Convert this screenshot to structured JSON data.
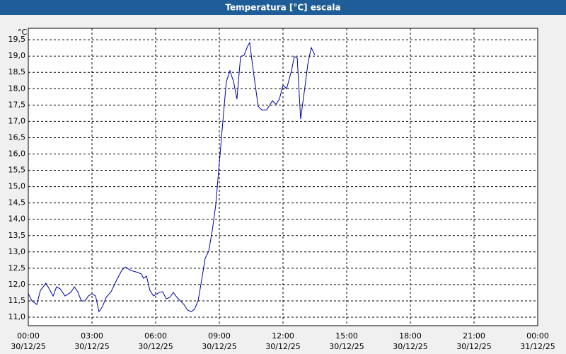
{
  "chart_data": {
    "type": "line",
    "title": "Temperatura [°C] escala",
    "y_unit": "°C",
    "x": [
      0,
      0.17,
      0.4,
      0.57,
      0.83,
      0.93,
      1.17,
      1.33,
      1.5,
      1.73,
      2,
      2.17,
      2.33,
      2.5,
      2.67,
      2.83,
      3,
      3.17,
      3.33,
      3.5,
      3.67,
      3.9,
      4.17,
      4.4,
      4.57,
      4.83,
      5.17,
      5.33,
      5.43,
      5.57,
      5.73,
      5.9,
      6.17,
      6.33,
      6.5,
      6.67,
      6.83,
      7,
      7.17,
      7.33,
      7.5,
      7.67,
      7.83,
      8,
      8.17,
      8.33,
      8.5,
      8.67,
      8.83,
      9,
      9.17,
      9.33,
      9.5,
      9.67,
      9.83,
      10,
      10.17,
      10.33,
      10.43,
      10.6,
      10.83,
      11,
      11.23,
      11.5,
      11.67,
      11.83,
      12,
      12.17,
      12.4,
      12.53,
      12.67,
      12.83,
      13,
      13.17,
      13.33,
      13.5
    ],
    "series": [
      {
        "name": "Temperatura",
        "color": "#0000a0",
        "values": [
          11.72,
          11.5,
          11.39,
          11.82,
          12.04,
          11.93,
          11.65,
          11.93,
          11.87,
          11.65,
          11.76,
          11.93,
          11.78,
          11.5,
          11.5,
          11.65,
          11.72,
          11.65,
          11.17,
          11.33,
          11.61,
          11.78,
          12.15,
          12.43,
          12.54,
          12.43,
          12.37,
          12.32,
          12.19,
          12.26,
          11.82,
          11.65,
          11.76,
          11.78,
          11.56,
          11.61,
          11.76,
          11.61,
          11.5,
          11.39,
          11.22,
          11.17,
          11.24,
          11.5,
          12.15,
          12.8,
          13.02,
          13.67,
          14.43,
          15.73,
          17.03,
          18.22,
          18.55,
          18.22,
          17.68,
          18.98,
          19.03,
          19.3,
          19.41,
          18.55,
          17.46,
          17.35,
          17.35,
          17.63,
          17.52,
          17.68,
          18.11,
          18.0,
          18.55,
          18.98,
          18.94,
          17.07,
          17.89,
          18.76,
          19.26,
          19.03
        ]
      }
    ],
    "xlim": [
      0,
      24
    ],
    "xticks": [
      {
        "value": 0,
        "label": "00:00",
        "date": "30/12/25"
      },
      {
        "value": 3,
        "label": "03:00",
        "date": "30/12/25"
      },
      {
        "value": 6,
        "label": "06:00",
        "date": "30/12/25"
      },
      {
        "value": 9,
        "label": "09:00",
        "date": "30/12/25"
      },
      {
        "value": 12,
        "label": "12:00",
        "date": "30/12/25"
      },
      {
        "value": 15,
        "label": "15:00",
        "date": "30/12/25"
      },
      {
        "value": 18,
        "label": "18:00",
        "date": "30/12/25"
      },
      {
        "value": 21,
        "label": "21:00",
        "date": "30/12/25"
      },
      {
        "value": 24,
        "label": "00:00",
        "date": "31/12/25"
      }
    ],
    "ylim": [
      10.74,
      19.85
    ],
    "yticks": [
      {
        "value": 11,
        "label": "11,0"
      },
      {
        "value": 11.5,
        "label": "11,5"
      },
      {
        "value": 12,
        "label": "12,0"
      },
      {
        "value": 12.5,
        "label": "12,5"
      },
      {
        "value": 13,
        "label": "13,0"
      },
      {
        "value": 13.5,
        "label": "13,5"
      },
      {
        "value": 14,
        "label": "14,0"
      },
      {
        "value": 14.5,
        "label": "14,5"
      },
      {
        "value": 15,
        "label": "15,0"
      },
      {
        "value": 15.5,
        "label": "15,5"
      },
      {
        "value": 16,
        "label": "16,0"
      },
      {
        "value": 16.5,
        "label": "16,5"
      },
      {
        "value": 17,
        "label": "17,0"
      },
      {
        "value": 17.5,
        "label": "17,5"
      },
      {
        "value": 18,
        "label": "18,0"
      },
      {
        "value": 18.5,
        "label": "18,5"
      },
      {
        "value": 19,
        "label": "19,0"
      },
      {
        "value": 19.5,
        "label": "19,5"
      }
    ],
    "grid": true
  }
}
